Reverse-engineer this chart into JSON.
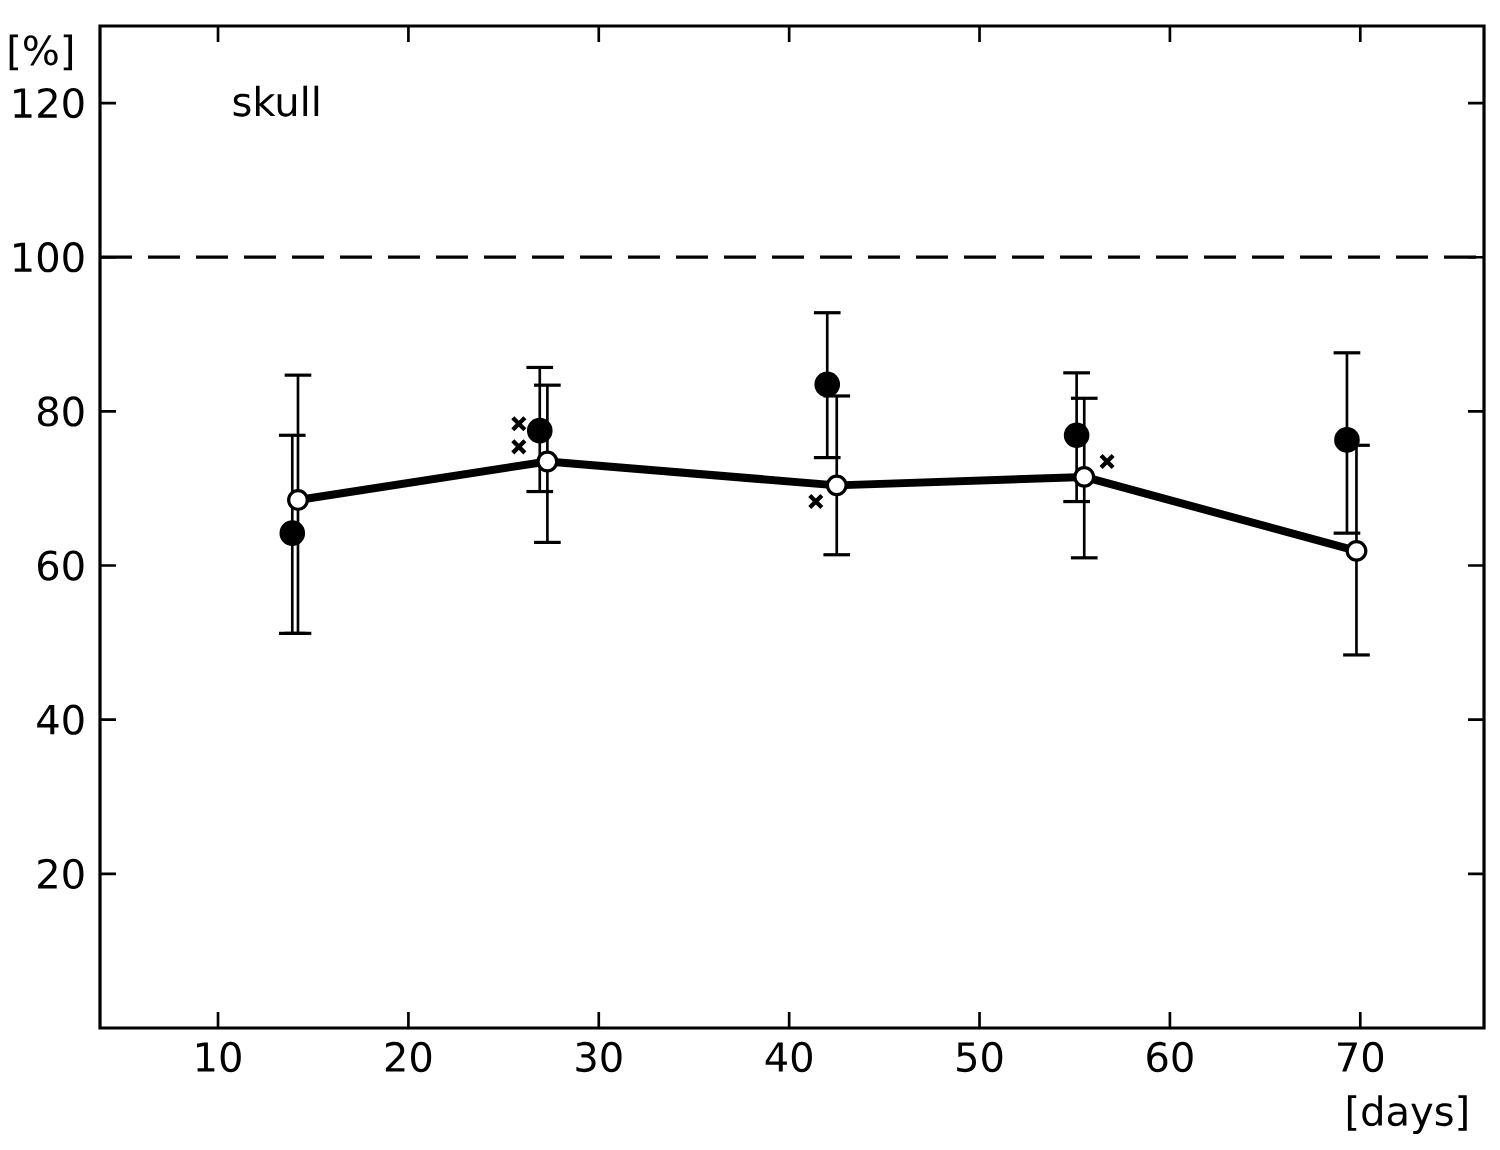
{
  "chart_data": {
    "type": "line",
    "xlabel": "[days]",
    "ylabel": "[%]",
    "annotations": [
      "skull"
    ],
    "xlim": [
      3.8,
      76.5
    ],
    "ylim": [
      0,
      130
    ],
    "xticks": [
      10,
      20,
      30,
      40,
      50,
      60,
      70
    ],
    "yticks": [
      20,
      40,
      60,
      80,
      100,
      120
    ],
    "grid": false,
    "line_style": "solid",
    "ref_lines": [
      {
        "axis": "y",
        "value": 100,
        "line_style": "dashed",
        "color": "#000000"
      }
    ],
    "series": [
      {
        "marker": "circle",
        "color": "#000000",
        "x": [
          14.2,
          27.3,
          42.5,
          55.5,
          69.8
        ],
        "values": [
          68.5,
          73.5,
          70.4,
          71.5,
          61.9
        ],
        "errors": [
          [
            51.2,
            84.7
          ],
          [
            63.0,
            83.4
          ],
          [
            61.4,
            82.0
          ],
          [
            61.0,
            81.7
          ],
          [
            48.4,
            75.6
          ]
        ]
      },
      {
        "type": "scatter",
        "marker": "circle",
        "color": "#000000",
        "x": [
          13.9,
          26.9,
          42.0,
          55.1,
          69.3
        ],
        "values": [
          64.2,
          77.5,
          83.5,
          76.9,
          76.3
        ],
        "errors": [
          [
            51.2,
            76.9
          ],
          [
            69.6,
            85.7
          ],
          [
            74.0,
            92.8
          ],
          [
            68.3,
            85.0
          ],
          [
            64.2,
            87.6
          ]
        ]
      },
      {
        "type": "scatter",
        "marker": "cross",
        "color": "#000000",
        "x": [
          25.8,
          25.8,
          41.4,
          56.7
        ],
        "values": [
          78.4,
          75.4,
          68.3,
          73.5
        ]
      }
    ]
  }
}
